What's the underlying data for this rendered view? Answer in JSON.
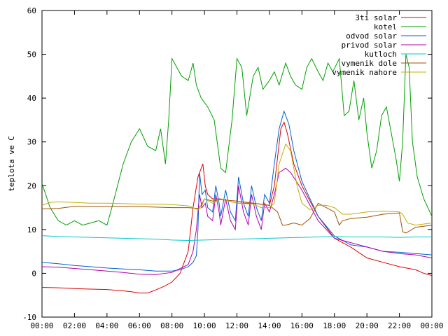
{
  "chart_data": {
    "type": "line",
    "title": "",
    "xlabel": "",
    "ylabel": "teplota ve C",
    "xlim": [
      0,
      24
    ],
    "ylim": [
      -10,
      60
    ],
    "x_ticks": [
      "00:00",
      "02:00",
      "04:00",
      "06:00",
      "08:00",
      "10:00",
      "12:00",
      "14:00",
      "16:00",
      "18:00",
      "20:00",
      "22:00",
      "00:00"
    ],
    "y_ticks": [
      -10,
      0,
      10,
      20,
      30,
      40,
      50,
      60
    ],
    "grid": false,
    "legend_position": "top-right",
    "series": [
      {
        "name": "3ti solar",
        "color": "#e00000",
        "points": [
          [
            0,
            -3.2
          ],
          [
            1,
            -3.3
          ],
          [
            2,
            -3.5
          ],
          [
            3,
            -3.6
          ],
          [
            4,
            -3.7
          ],
          [
            5,
            -4.0
          ],
          [
            5.5,
            -4.2
          ],
          [
            6,
            -4.5
          ],
          [
            6.5,
            -4.5
          ],
          [
            7,
            -3.8
          ],
          [
            7.5,
            -3.0
          ],
          [
            8,
            -2.0
          ],
          [
            8.5,
            0
          ],
          [
            9,
            5
          ],
          [
            9.3,
            15
          ],
          [
            9.6,
            22
          ],
          [
            9.9,
            25
          ],
          [
            10.05,
            20
          ],
          [
            10.2,
            18
          ],
          [
            10.5,
            17
          ],
          [
            11,
            17
          ],
          [
            12,
            16
          ],
          [
            13,
            16
          ],
          [
            14,
            15.5
          ],
          [
            14.3,
            20
          ],
          [
            14.7,
            33
          ],
          [
            14.9,
            34.5
          ],
          [
            15.1,
            32
          ],
          [
            15.5,
            25
          ],
          [
            16,
            20
          ],
          [
            17,
            13
          ],
          [
            18,
            8
          ],
          [
            19,
            6
          ],
          [
            20,
            3.5
          ],
          [
            21,
            2.5
          ],
          [
            22,
            1.5
          ],
          [
            23,
            0.8
          ],
          [
            23.5,
            0
          ],
          [
            24,
            -0.5
          ]
        ]
      },
      {
        "name": "kotel",
        "color": "#00a000",
        "points": [
          [
            0,
            20.5
          ],
          [
            0.5,
            15
          ],
          [
            1,
            12
          ],
          [
            1.5,
            11
          ],
          [
            2,
            12
          ],
          [
            2.5,
            11
          ],
          [
            3,
            11.5
          ],
          [
            3.5,
            12
          ],
          [
            4,
            11
          ],
          [
            4.3,
            15
          ],
          [
            5,
            25
          ],
          [
            5.5,
            30
          ],
          [
            6,
            33
          ],
          [
            6.5,
            29
          ],
          [
            7,
            28
          ],
          [
            7.3,
            33
          ],
          [
            7.6,
            25
          ],
          [
            7.8,
            35
          ],
          [
            8,
            49
          ],
          [
            8.3,
            47
          ],
          [
            8.6,
            45
          ],
          [
            9,
            44
          ],
          [
            9.3,
            48
          ],
          [
            9.5,
            43
          ],
          [
            9.8,
            40
          ],
          [
            10.2,
            38
          ],
          [
            10.6,
            35
          ],
          [
            11,
            24
          ],
          [
            11.3,
            23
          ],
          [
            11.7,
            35
          ],
          [
            12,
            49
          ],
          [
            12.3,
            47
          ],
          [
            12.6,
            36
          ],
          [
            13,
            45
          ],
          [
            13.3,
            47
          ],
          [
            13.6,
            42
          ],
          [
            14,
            44
          ],
          [
            14.3,
            46
          ],
          [
            14.6,
            43
          ],
          [
            15,
            48
          ],
          [
            15.3,
            45
          ],
          [
            15.6,
            43
          ],
          [
            16,
            42
          ],
          [
            16.3,
            47
          ],
          [
            16.6,
            49
          ],
          [
            17,
            46
          ],
          [
            17.3,
            44
          ],
          [
            17.6,
            48
          ],
          [
            17.9,
            46
          ],
          [
            18.3,
            49
          ],
          [
            18.6,
            36
          ],
          [
            18.9,
            37
          ],
          [
            19.2,
            44
          ],
          [
            19.5,
            35
          ],
          [
            19.8,
            40
          ],
          [
            20,
            32
          ],
          [
            20.3,
            24
          ],
          [
            20.6,
            28
          ],
          [
            20.9,
            36
          ],
          [
            21.2,
            38
          ],
          [
            21.5,
            32
          ],
          [
            21.8,
            26
          ],
          [
            22,
            21
          ],
          [
            22.2,
            30
          ],
          [
            22.4,
            50
          ],
          [
            22.6,
            47
          ],
          [
            22.8,
            30
          ],
          [
            23.1,
            22
          ],
          [
            23.5,
            17
          ],
          [
            24,
            13
          ]
        ]
      },
      {
        "name": "odvod solar",
        "color": "#0060d0",
        "points": [
          [
            0,
            2.5
          ],
          [
            1,
            2.2
          ],
          [
            2,
            1.8
          ],
          [
            3,
            1.5
          ],
          [
            4,
            1.2
          ],
          [
            5,
            1.0
          ],
          [
            6,
            0.8
          ],
          [
            7,
            0.5
          ],
          [
            8,
            0.5
          ],
          [
            8.5,
            0.8
          ],
          [
            9,
            1.5
          ],
          [
            9.3,
            2.5
          ],
          [
            9.5,
            4
          ],
          [
            9.6,
            10
          ],
          [
            9.7,
            23
          ],
          [
            9.85,
            18
          ],
          [
            10.05,
            19
          ],
          [
            10.2,
            15
          ],
          [
            10.5,
            14
          ],
          [
            10.7,
            20
          ],
          [
            10.9,
            16
          ],
          [
            11,
            13
          ],
          [
            11.3,
            19
          ],
          [
            11.6,
            14
          ],
          [
            11.9,
            12
          ],
          [
            12.1,
            22
          ],
          [
            12.4,
            16
          ],
          [
            12.7,
            13
          ],
          [
            12.9,
            20
          ],
          [
            13.2,
            15
          ],
          [
            13.5,
            12
          ],
          [
            13.7,
            18
          ],
          [
            14,
            16
          ],
          [
            14.3,
            25
          ],
          [
            14.6,
            33
          ],
          [
            14.9,
            37
          ],
          [
            15.2,
            34
          ],
          [
            15.5,
            28
          ],
          [
            16,
            21
          ],
          [
            17,
            13
          ],
          [
            18,
            8.5
          ],
          [
            19,
            6.5
          ],
          [
            20,
            6
          ],
          [
            21,
            5
          ],
          [
            22,
            4.8
          ],
          [
            23,
            4.5
          ],
          [
            24,
            4.2
          ]
        ]
      },
      {
        "name": "privod solar",
        "color": "#b000b0",
        "points": [
          [
            0,
            1.5
          ],
          [
            1,
            1.4
          ],
          [
            2,
            1.1
          ],
          [
            3,
            0.8
          ],
          [
            4,
            0.5
          ],
          [
            5,
            0.2
          ],
          [
            6,
            -0.2
          ],
          [
            7,
            -0.3
          ],
          [
            8,
            0.2
          ],
          [
            9,
            2
          ],
          [
            9.3,
            5
          ],
          [
            9.5,
            10
          ],
          [
            9.7,
            18
          ],
          [
            9.85,
            15
          ],
          [
            10.05,
            16
          ],
          [
            10.2,
            13
          ],
          [
            10.5,
            12
          ],
          [
            10.7,
            18
          ],
          [
            10.9,
            14
          ],
          [
            11,
            11
          ],
          [
            11.3,
            17
          ],
          [
            11.6,
            12
          ],
          [
            11.9,
            10
          ],
          [
            12.1,
            20
          ],
          [
            12.4,
            14
          ],
          [
            12.7,
            11
          ],
          [
            12.9,
            18
          ],
          [
            13.2,
            13
          ],
          [
            13.5,
            10
          ],
          [
            13.7,
            16
          ],
          [
            14,
            14
          ],
          [
            14.3,
            18
          ],
          [
            14.6,
            23
          ],
          [
            15,
            24
          ],
          [
            15.3,
            23
          ],
          [
            16,
            19
          ],
          [
            17,
            12
          ],
          [
            18,
            8
          ],
          [
            19,
            7
          ],
          [
            20,
            6
          ],
          [
            21,
            5
          ],
          [
            22,
            4.5
          ],
          [
            23,
            4.2
          ],
          [
            24,
            3.5
          ]
        ]
      },
      {
        "name": "kutloch",
        "color": "#00c8c8",
        "points": [
          [
            0,
            8.6
          ],
          [
            1,
            8.4
          ],
          [
            2,
            8.3
          ],
          [
            3,
            8.2
          ],
          [
            4,
            8.1
          ],
          [
            5,
            8
          ],
          [
            6,
            7.9
          ],
          [
            7,
            7.8
          ],
          [
            8,
            7.6
          ],
          [
            9,
            7.5
          ],
          [
            10,
            7.6
          ],
          [
            11,
            7.7
          ],
          [
            12,
            7.8
          ],
          [
            13,
            7.9
          ],
          [
            14,
            8
          ],
          [
            15,
            8.1
          ],
          [
            16,
            8.2
          ],
          [
            17,
            8.3
          ],
          [
            18,
            8.4
          ],
          [
            19,
            8.3
          ],
          [
            20,
            8.3
          ],
          [
            21,
            8.3
          ],
          [
            22,
            8.2
          ],
          [
            23,
            8.3
          ],
          [
            24,
            8.3
          ]
        ]
      },
      {
        "name": "vymenik dole",
        "color": "#a05000",
        "points": [
          [
            0,
            14.7
          ],
          [
            1,
            14.8
          ],
          [
            2,
            15.3
          ],
          [
            3,
            15.3
          ],
          [
            4,
            15.3
          ],
          [
            5,
            15.3
          ],
          [
            6,
            15.2
          ],
          [
            7,
            15.1
          ],
          [
            8,
            15
          ],
          [
            9,
            15
          ],
          [
            9.6,
            14.8
          ],
          [
            9.8,
            15.5
          ],
          [
            10,
            17
          ],
          [
            10.5,
            16.5
          ],
          [
            11,
            16.8
          ],
          [
            12,
            16.5
          ],
          [
            13,
            16
          ],
          [
            14,
            15.5
          ],
          [
            14.5,
            14
          ],
          [
            14.8,
            11
          ],
          [
            15,
            11
          ],
          [
            15.5,
            11.5
          ],
          [
            16,
            11
          ],
          [
            16.5,
            12.5
          ],
          [
            17,
            16
          ],
          [
            17.5,
            15
          ],
          [
            18,
            14
          ],
          [
            18.3,
            11
          ],
          [
            18.5,
            12
          ],
          [
            19,
            12.5
          ],
          [
            20,
            12.8
          ],
          [
            21,
            13.5
          ],
          [
            22,
            13.8
          ],
          [
            22.2,
            9.5
          ],
          [
            22.4,
            9.2
          ],
          [
            23,
            10.5
          ],
          [
            24,
            11
          ]
        ]
      },
      {
        "name": "vymenik nahore",
        "color": "#c0b000",
        "points": [
          [
            0,
            15.5
          ],
          [
            0.5,
            16.2
          ],
          [
            1,
            16.3
          ],
          [
            2,
            16.2
          ],
          [
            3,
            16
          ],
          [
            4,
            16
          ],
          [
            5,
            15.9
          ],
          [
            6,
            15.8
          ],
          [
            7,
            15.8
          ],
          [
            8,
            15.7
          ],
          [
            9,
            15.4
          ],
          [
            9.6,
            14.5
          ],
          [
            9.8,
            15
          ],
          [
            10,
            17
          ],
          [
            10.5,
            16
          ],
          [
            11,
            17
          ],
          [
            12,
            16
          ],
          [
            13,
            15.8
          ],
          [
            13.5,
            15
          ],
          [
            14,
            15
          ],
          [
            14.3,
            16
          ],
          [
            14.6,
            25
          ],
          [
            15,
            29.5
          ],
          [
            15.3,
            28
          ],
          [
            15.7,
            20
          ],
          [
            16,
            16
          ],
          [
            16.5,
            14.5
          ],
          [
            17,
            15.5
          ],
          [
            17.5,
            15.5
          ],
          [
            18,
            15
          ],
          [
            18.5,
            13.5
          ],
          [
            19,
            13.5
          ],
          [
            20,
            14
          ],
          [
            21,
            14.2
          ],
          [
            22,
            14
          ],
          [
            22.2,
            13.5
          ],
          [
            22.5,
            11.5
          ],
          [
            23,
            11
          ],
          [
            24,
            11.5
          ]
        ]
      }
    ]
  }
}
